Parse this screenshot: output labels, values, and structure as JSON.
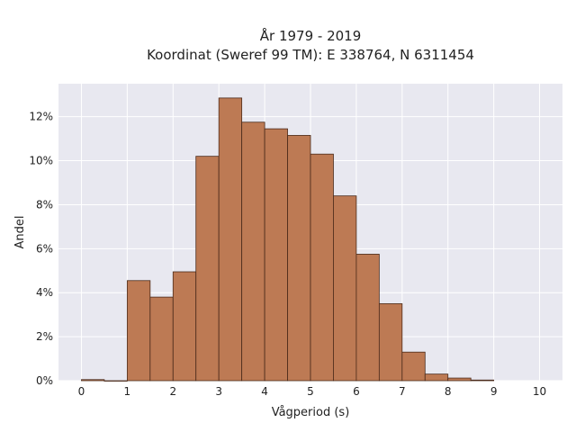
{
  "chart_data": {
    "type": "bar",
    "title_line1": "År 1979 - 2019",
    "title_line2": "Koordinat (Sweref 99 TM): E 338764, N 6311454",
    "xlabel": "Vågperiod (s)",
    "ylabel": "Andel",
    "bin_width": 0.5,
    "bins": [
      {
        "start": 0.0,
        "value": 0.05
      },
      {
        "start": 0.5,
        "value": 0.0
      },
      {
        "start": 1.0,
        "value": 4.55
      },
      {
        "start": 1.5,
        "value": 3.8
      },
      {
        "start": 2.0,
        "value": 4.95
      },
      {
        "start": 2.5,
        "value": 10.2
      },
      {
        "start": 3.0,
        "value": 12.85
      },
      {
        "start": 3.5,
        "value": 11.75
      },
      {
        "start": 4.0,
        "value": 11.45
      },
      {
        "start": 4.5,
        "value": 11.15
      },
      {
        "start": 5.0,
        "value": 10.3
      },
      {
        "start": 5.5,
        "value": 8.4
      },
      {
        "start": 6.0,
        "value": 5.75
      },
      {
        "start": 6.5,
        "value": 3.5
      },
      {
        "start": 7.0,
        "value": 1.3
      },
      {
        "start": 7.5,
        "value": 0.3
      },
      {
        "start": 8.0,
        "value": 0.12
      },
      {
        "start": 8.5,
        "value": 0.03
      }
    ],
    "xlim": [
      -0.5,
      10.5
    ],
    "ylim": [
      0,
      13.5
    ],
    "xticks": [
      0,
      1,
      2,
      3,
      4,
      5,
      6,
      7,
      8,
      9,
      10
    ],
    "yticks": [
      0,
      2,
      4,
      6,
      8,
      10,
      12
    ],
    "ytick_suffix": "%",
    "grid": true,
    "colors": {
      "bar_fill": "#bd7a54",
      "bar_edge": "#4a2a1a",
      "plot_bg": "#e8e8f0",
      "grid": "#ffffff"
    }
  }
}
